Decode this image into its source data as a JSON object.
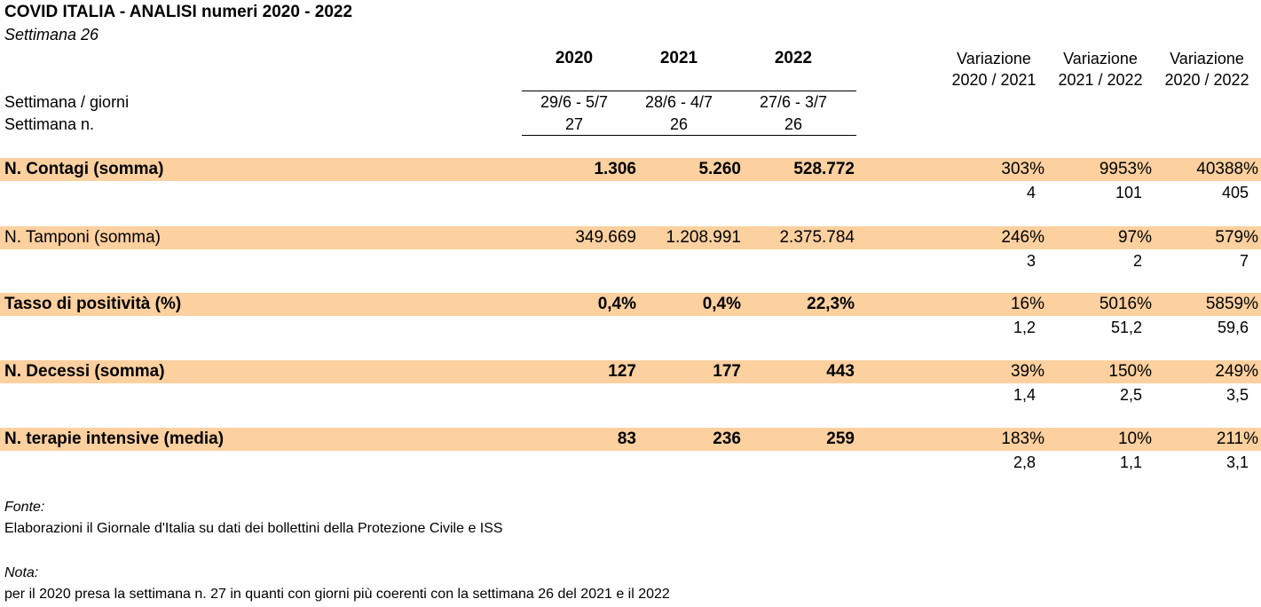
{
  "header": {
    "title": "COVID ITALIA - ANALISI numeri 2020 - 2022",
    "subtitle": "Settimana 26",
    "years": [
      "2020",
      "2021",
      "2022"
    ],
    "variations": [
      {
        "line1": "Variazione",
        "line2": "2020 / 2021"
      },
      {
        "line1": "Variazione",
        "line2": "2021 / 2022"
      },
      {
        "line1": "Variazione",
        "line2": "2020 / 2022"
      }
    ],
    "week_days_label": "Settimana / giorni",
    "week_days": [
      "29/6 - 5/7",
      "28/6 - 4/7",
      "27/6 - 3/7"
    ],
    "week_num_label": "Settimana n.",
    "week_nums": [
      "27",
      "26",
      "26"
    ]
  },
  "rows": [
    {
      "label": "N. Contagi (somma)",
      "bold": true,
      "values": [
        "1.306",
        "5.260",
        "528.772"
      ],
      "pct": [
        "303%",
        "9953%",
        "40388%"
      ],
      "ratio": [
        "4",
        "101",
        "405"
      ]
    },
    {
      "label": "N. Tamponi (somma)",
      "bold": false,
      "values": [
        "349.669",
        "1.208.991",
        "2.375.784"
      ],
      "pct": [
        "246%",
        "97%",
        "579%"
      ],
      "ratio": [
        "3",
        "2",
        "7"
      ]
    },
    {
      "label": "Tasso di positività (%)",
      "bold": true,
      "values": [
        "0,4%",
        "0,4%",
        "22,3%"
      ],
      "pct": [
        "16%",
        "5016%",
        "5859%"
      ],
      "ratio": [
        "1,2",
        "51,2",
        "59,6"
      ]
    },
    {
      "label": "N. Decessi (somma)",
      "bold": true,
      "values": [
        "127",
        "177",
        "443"
      ],
      "pct": [
        "39%",
        "150%",
        "249%"
      ],
      "ratio": [
        "1,4",
        "2,5",
        "3,5"
      ]
    },
    {
      "label": "N. terapie intensive (media)",
      "bold": true,
      "values": [
        "83",
        "236",
        "259"
      ],
      "pct": [
        "183%",
        "10%",
        "211%"
      ],
      "ratio": [
        "2,8",
        "1,1",
        "3,1"
      ]
    }
  ],
  "footer": {
    "source_label": "Fonte:",
    "source_text": "Elaborazioni il Giornale d'Italia su dati dei bollettini della Protezione Civile e ISS",
    "note_label": "Nota:",
    "note_text": "per il 2020 presa la settimana n. 27 in quanti con giorni più coerenti con la settimana 26 del  2021 e il 2022"
  },
  "colors": {
    "band": "#fcd09f"
  }
}
